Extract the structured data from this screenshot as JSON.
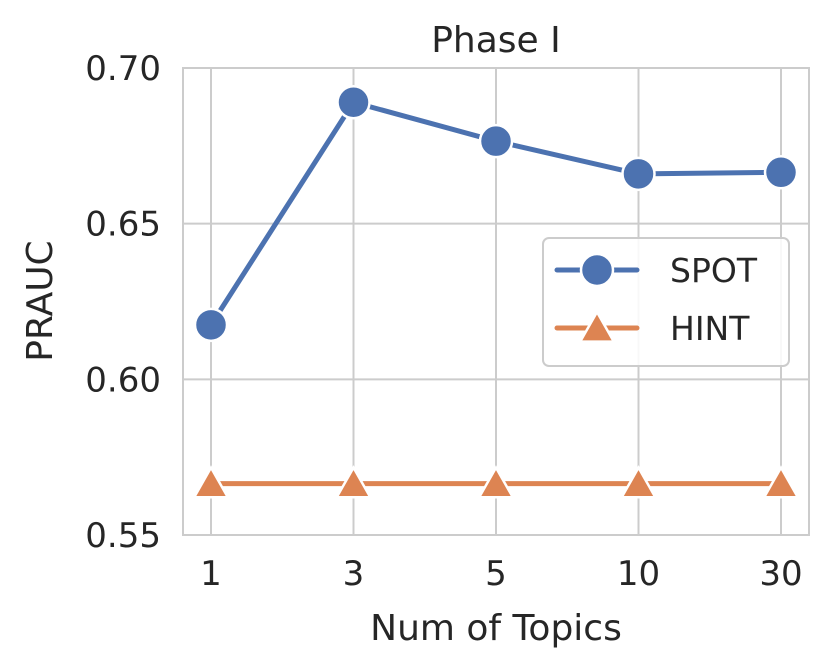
{
  "chart_data": {
    "type": "line",
    "title": "Phase I",
    "xlabel": "Num of Topics",
    "ylabel": "PRAUC",
    "categories": [
      "1",
      "3",
      "5",
      "10",
      "30"
    ],
    "ylim": [
      0.55,
      0.7
    ],
    "yticks": [
      "0.55",
      "0.60",
      "0.65",
      "0.70"
    ],
    "grid": true,
    "legend_position": "center-right",
    "series": [
      {
        "name": "SPOT",
        "marker": "circle",
        "color": "#4c72b0",
        "values": [
          0.6175,
          0.689,
          0.6765,
          0.666,
          0.6665
        ]
      },
      {
        "name": "HINT",
        "marker": "triangle",
        "color": "#dd8452",
        "values": [
          0.5665,
          0.5665,
          0.5665,
          0.5665,
          0.5665
        ]
      }
    ]
  }
}
